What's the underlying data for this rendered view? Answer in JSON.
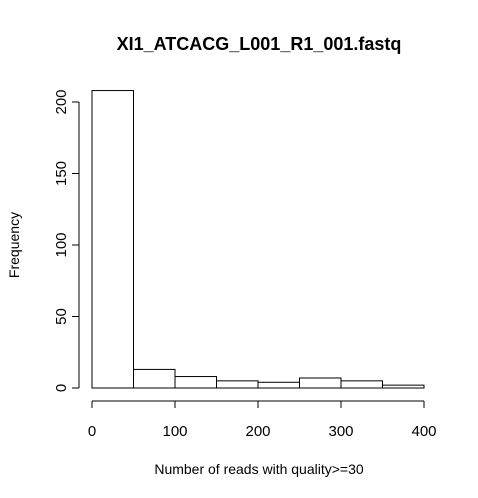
{
  "chart_data": {
    "type": "bar",
    "title": "XI1_ATCACG_L001_R1_001.fastq",
    "xlabel": "Number of reads with quality>=30",
    "ylabel": "Frequency",
    "bins": [
      {
        "start": 0,
        "end": 50,
        "count": 208
      },
      {
        "start": 50,
        "end": 100,
        "count": 13
      },
      {
        "start": 100,
        "end": 150,
        "count": 8
      },
      {
        "start": 150,
        "end": 200,
        "count": 5
      },
      {
        "start": 200,
        "end": 250,
        "count": 4
      },
      {
        "start": 250,
        "end": 300,
        "count": 7
      },
      {
        "start": 300,
        "end": 350,
        "count": 5
      },
      {
        "start": 350,
        "end": 400,
        "count": 2
      }
    ],
    "xlim": [
      0,
      400
    ],
    "ylim": [
      0,
      200
    ],
    "xticks": [
      0,
      100,
      200,
      300,
      400
    ],
    "yticks": [
      0,
      50,
      100,
      150,
      200
    ],
    "bar_fill": "#ffffff",
    "bar_stroke": "#000000",
    "grid": false
  }
}
